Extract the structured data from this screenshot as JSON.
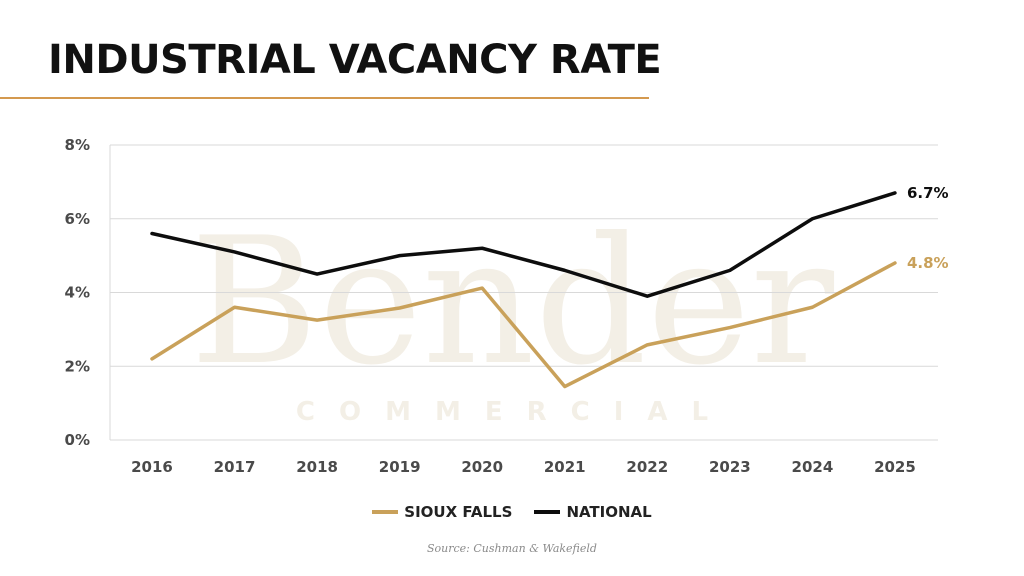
{
  "page": {
    "title": "INDUSTRIAL VACANCY RATE",
    "source": "Source: Cushman & Wakefield",
    "watermark": {
      "main": "Bender",
      "sub": "COMMERCIAL"
    }
  },
  "colors": {
    "sioux_falls": "#c9a15a",
    "national": "#0d0d0d",
    "accent_rule": "#d4994f",
    "grid": "#d9d9d9"
  },
  "chart_data": {
    "type": "line",
    "title": "INDUSTRIAL VACANCY RATE",
    "xlabel": "",
    "ylabel": "",
    "categories": [
      "2016",
      "2017",
      "2018",
      "2019",
      "2020",
      "2021",
      "2022",
      "2023",
      "2024",
      "2025"
    ],
    "ylim": [
      0,
      8
    ],
    "yticks": [
      "0%",
      "2%",
      "4%",
      "6%",
      "8%"
    ],
    "grid": true,
    "legend": "bottom",
    "series": [
      {
        "name": "SIOUX FALLS",
        "values": [
          2.2,
          3.6,
          3.25,
          3.58,
          4.12,
          1.45,
          2.58,
          3.05,
          3.6,
          4.8
        ],
        "end_label": "4.8%"
      },
      {
        "name": "NATIONAL",
        "values": [
          5.6,
          5.1,
          4.5,
          5.0,
          5.2,
          4.6,
          3.9,
          4.6,
          6.0,
          6.7
        ],
        "end_label": "6.7%"
      }
    ]
  }
}
